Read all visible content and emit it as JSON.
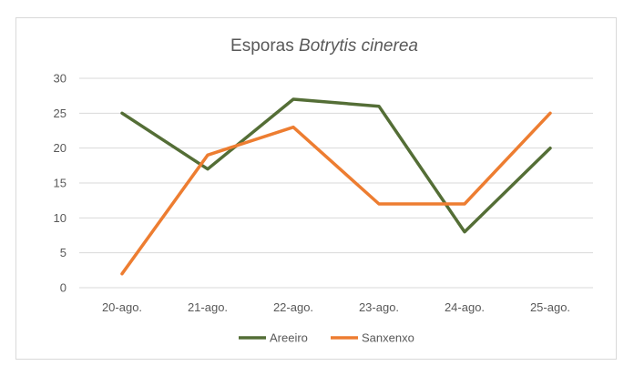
{
  "chart_data": {
    "type": "line",
    "title_prefix": "Esporas ",
    "title_italic": "Botrytis cinerea",
    "categories": [
      "20-ago.",
      "21-ago.",
      "22-ago.",
      "23-ago.",
      "24-ago.",
      "25-ago."
    ],
    "series": [
      {
        "name": "Areeiro",
        "color": "#546e36",
        "values": [
          25,
          17,
          27,
          26,
          8,
          20
        ]
      },
      {
        "name": "Sanxenxo",
        "color": "#ed7d31",
        "values": [
          2,
          19,
          23,
          12,
          12,
          25
        ]
      }
    ],
    "ylim": [
      0,
      30
    ],
    "yticks": [
      0,
      5,
      10,
      15,
      20,
      25,
      30
    ],
    "grid": true,
    "legend_position": "bottom",
    "gridline_color": "#d9d9d9"
  }
}
